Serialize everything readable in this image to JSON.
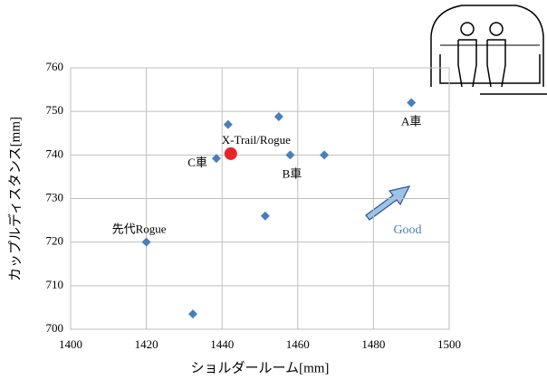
{
  "chart_data": {
    "type": "scatter",
    "x_label": "ショルダールーム[mm]",
    "y_label": "カップルディスタンス[mm]",
    "xlim": [
      1400,
      1500
    ],
    "xticks": [
      1400,
      1420,
      1440,
      1460,
      1480,
      1500
    ],
    "ylim": [
      700,
      760
    ],
    "yticks": [
      700,
      710,
      720,
      730,
      740,
      750,
      760
    ],
    "grid": true,
    "series": [
      {
        "color": "#4a7ebb",
        "marker": "diamond",
        "x": [
          1490,
          1441.6,
          1455,
          1438.5,
          1458,
          1467,
          1451.4,
          1420,
          1432.3
        ],
        "values": [
          752,
          747,
          748.8,
          739.2,
          740,
          740,
          726,
          720,
          703.5
        ],
        "labels": [
          "A車",
          null,
          null,
          "C車",
          "B車",
          null,
          null,
          "先代Rogue",
          null
        ]
      },
      {
        "color": "#e8242b",
        "marker": "circle",
        "x": [
          1442.3
        ],
        "values": [
          740.3
        ],
        "labels": [
          "X-Trail/Rogue"
        ]
      }
    ],
    "annotation": "Good"
  }
}
